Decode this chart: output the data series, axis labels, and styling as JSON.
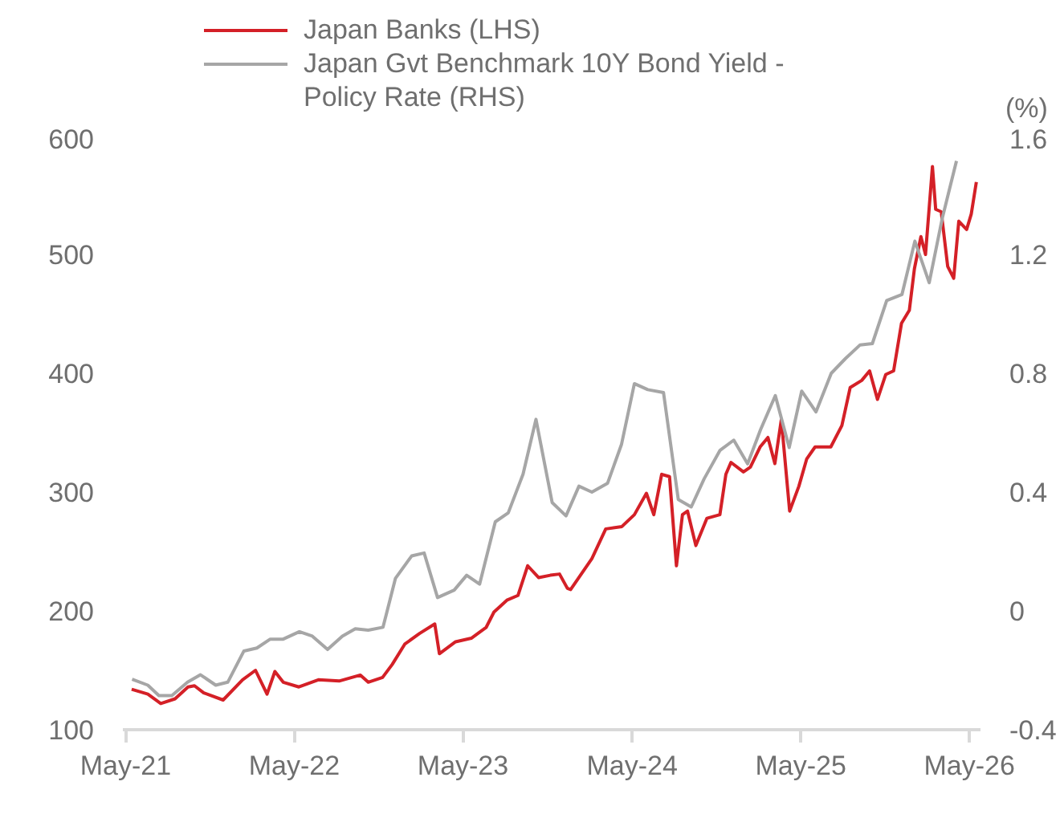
{
  "chart_data": {
    "type": "line",
    "y2label": "(%)",
    "legend": "top",
    "grid": false,
    "marker": "none",
    "line_style": "solid",
    "xlim": [
      "2021-04-25",
      "2026-05-25"
    ],
    "xticks": [
      {
        "value": "2021-05-01",
        "label": "May-21"
      },
      {
        "value": "2022-05-01",
        "label": "May-22"
      },
      {
        "value": "2023-05-01",
        "label": "May-23"
      },
      {
        "value": "2024-05-01",
        "label": "May-24"
      },
      {
        "value": "2025-05-01",
        "label": "May-25"
      },
      {
        "value": "2026-05-01",
        "label": "May-26"
      }
    ],
    "ylim": [
      100,
      600
    ],
    "yticks": [
      100,
      200,
      300,
      400,
      500,
      600
    ],
    "y2lim": [
      -0.4,
      1.6
    ],
    "y2ticks": [
      {
        "value": -0.4,
        "label": "-0.4"
      },
      {
        "value": 0,
        "label": "0"
      },
      {
        "value": 0.4,
        "label": "0.4"
      },
      {
        "value": 0.8,
        "label": "0.8"
      },
      {
        "value": 1.2,
        "label": "1.2"
      },
      {
        "value": 1.6,
        "label": "1.6"
      }
    ],
    "series": [
      {
        "name": "Japan Banks (LHS)",
        "color": "#d42027",
        "x": [
          "2021-05-14",
          "2021-06-18",
          "2021-07-16",
          "2021-08-16",
          "2021-09-13",
          "2021-09-27",
          "2021-10-17",
          "2021-11-28",
          "2022-01-09",
          "2022-02-06",
          "2022-03-03",
          "2022-03-20",
          "2022-04-07",
          "2022-05-11",
          "2022-06-22",
          "2022-08-06",
          "2022-09-21",
          "2022-10-08",
          "2022-11-08",
          "2022-11-29",
          "2022-12-26",
          "2023-01-27",
          "2023-03-01",
          "2023-03-11",
          "2023-04-15",
          "2023-05-19",
          "2023-06-20",
          "2023-07-07",
          "2023-08-04",
          "2023-08-28",
          "2023-09-18",
          "2023-10-12",
          "2023-11-06",
          "2023-11-26",
          "2023-12-13",
          "2023-12-20",
          "2024-02-04",
          "2024-03-05",
          "2024-04-09",
          "2024-05-06",
          "2024-06-01",
          "2024-06-17",
          "2024-07-04",
          "2024-07-21",
          "2024-08-05",
          "2024-08-18",
          "2024-08-29",
          "2024-09-16",
          "2024-10-10",
          "2024-11-07",
          "2024-11-20",
          "2024-12-01",
          "2024-12-28",
          "2025-01-12",
          "2025-02-02",
          "2025-02-19",
          "2025-03-06",
          "2025-03-20",
          "2025-04-07",
          "2025-04-27",
          "2025-05-14",
          "2025-06-01",
          "2025-07-05",
          "2025-07-29",
          "2025-08-16",
          "2025-09-10",
          "2025-09-27",
          "2025-10-14",
          "2025-11-01",
          "2025-11-18",
          "2025-12-05",
          "2025-12-22",
          "2026-01-02",
          "2026-01-16",
          "2026-01-26",
          "2026-02-10",
          "2026-02-17",
          "2026-03-01",
          "2026-03-15",
          "2026-03-28",
          "2026-04-08",
          "2026-04-25",
          "2026-05-05",
          "2026-05-16"
        ],
        "values": [
          134,
          130,
          122,
          126,
          136,
          137,
          131,
          125,
          142,
          150,
          130,
          149,
          140,
          136,
          142,
          141,
          146,
          140,
          144,
          155,
          172,
          181,
          189,
          164,
          174,
          177,
          186,
          199,
          209,
          213,
          238,
          228,
          230,
          231,
          219,
          218,
          244,
          269,
          271,
          281,
          299,
          281,
          315,
          313,
          238,
          281,
          284,
          255,
          278,
          281,
          315,
          325,
          317,
          321,
          338,
          346,
          324,
          361,
          284,
          305,
          328,
          338,
          338,
          356,
          388,
          394,
          402,
          378,
          399,
          402,
          442,
          453,
          488,
          515,
          500,
          574,
          538,
          536,
          490,
          480,
          528,
          521,
          534,
          561
        ]
      },
      {
        "name": "Japan Gvt Benchmark 10Y Bond Yield - Policy Rate (RHS)",
        "color": "#a6a6a6",
        "axis": "y2",
        "x": [
          "2021-05-15",
          "2021-06-18",
          "2021-07-12",
          "2021-08-09",
          "2021-09-12",
          "2021-10-10",
          "2021-11-12",
          "2021-12-08",
          "2022-01-12",
          "2022-02-09",
          "2022-03-10",
          "2022-04-07",
          "2022-05-12",
          "2022-06-09",
          "2022-07-12",
          "2022-08-13",
          "2022-09-10",
          "2022-10-08",
          "2022-11-09",
          "2022-12-06",
          "2023-01-10",
          "2023-02-06",
          "2023-03-07",
          "2023-04-12",
          "2023-05-09",
          "2023-06-06",
          "2023-07-10",
          "2023-08-07",
          "2023-09-08",
          "2023-10-06",
          "2023-11-10",
          "2023-12-10",
          "2024-01-07",
          "2024-02-04",
          "2024-03-09",
          "2024-04-08",
          "2024-05-06",
          "2024-06-04",
          "2024-07-08",
          "2024-08-09",
          "2024-09-06",
          "2024-10-04",
          "2024-11-07",
          "2024-12-07",
          "2025-01-06",
          "2025-02-03",
          "2025-03-07",
          "2025-04-06",
          "2025-05-03",
          "2025-06-03",
          "2025-07-06",
          "2025-08-06",
          "2025-09-06",
          "2025-10-03",
          "2025-11-03",
          "2025-12-06",
          "2026-01-03",
          "2026-02-03",
          "2026-03-03",
          "2026-04-03"
        ],
        "values": [
          -0.23,
          -0.25,
          -0.285,
          -0.285,
          -0.24,
          -0.215,
          -0.25,
          -0.24,
          -0.135,
          -0.125,
          -0.095,
          -0.095,
          -0.07,
          -0.085,
          -0.13,
          -0.085,
          -0.06,
          -0.065,
          -0.055,
          0.11,
          0.185,
          0.195,
          0.045,
          0.07,
          0.12,
          0.09,
          0.3,
          0.33,
          0.46,
          0.645,
          0.365,
          0.32,
          0.42,
          0.4,
          0.43,
          0.56,
          0.765,
          0.745,
          0.735,
          0.375,
          0.35,
          0.445,
          0.54,
          0.575,
          0.495,
          0.61,
          0.725,
          0.55,
          0.74,
          0.67,
          0.8,
          0.85,
          0.895,
          0.9,
          1.045,
          1.065,
          1.245,
          1.105,
          1.32,
          1.515
        ]
      }
    ]
  }
}
